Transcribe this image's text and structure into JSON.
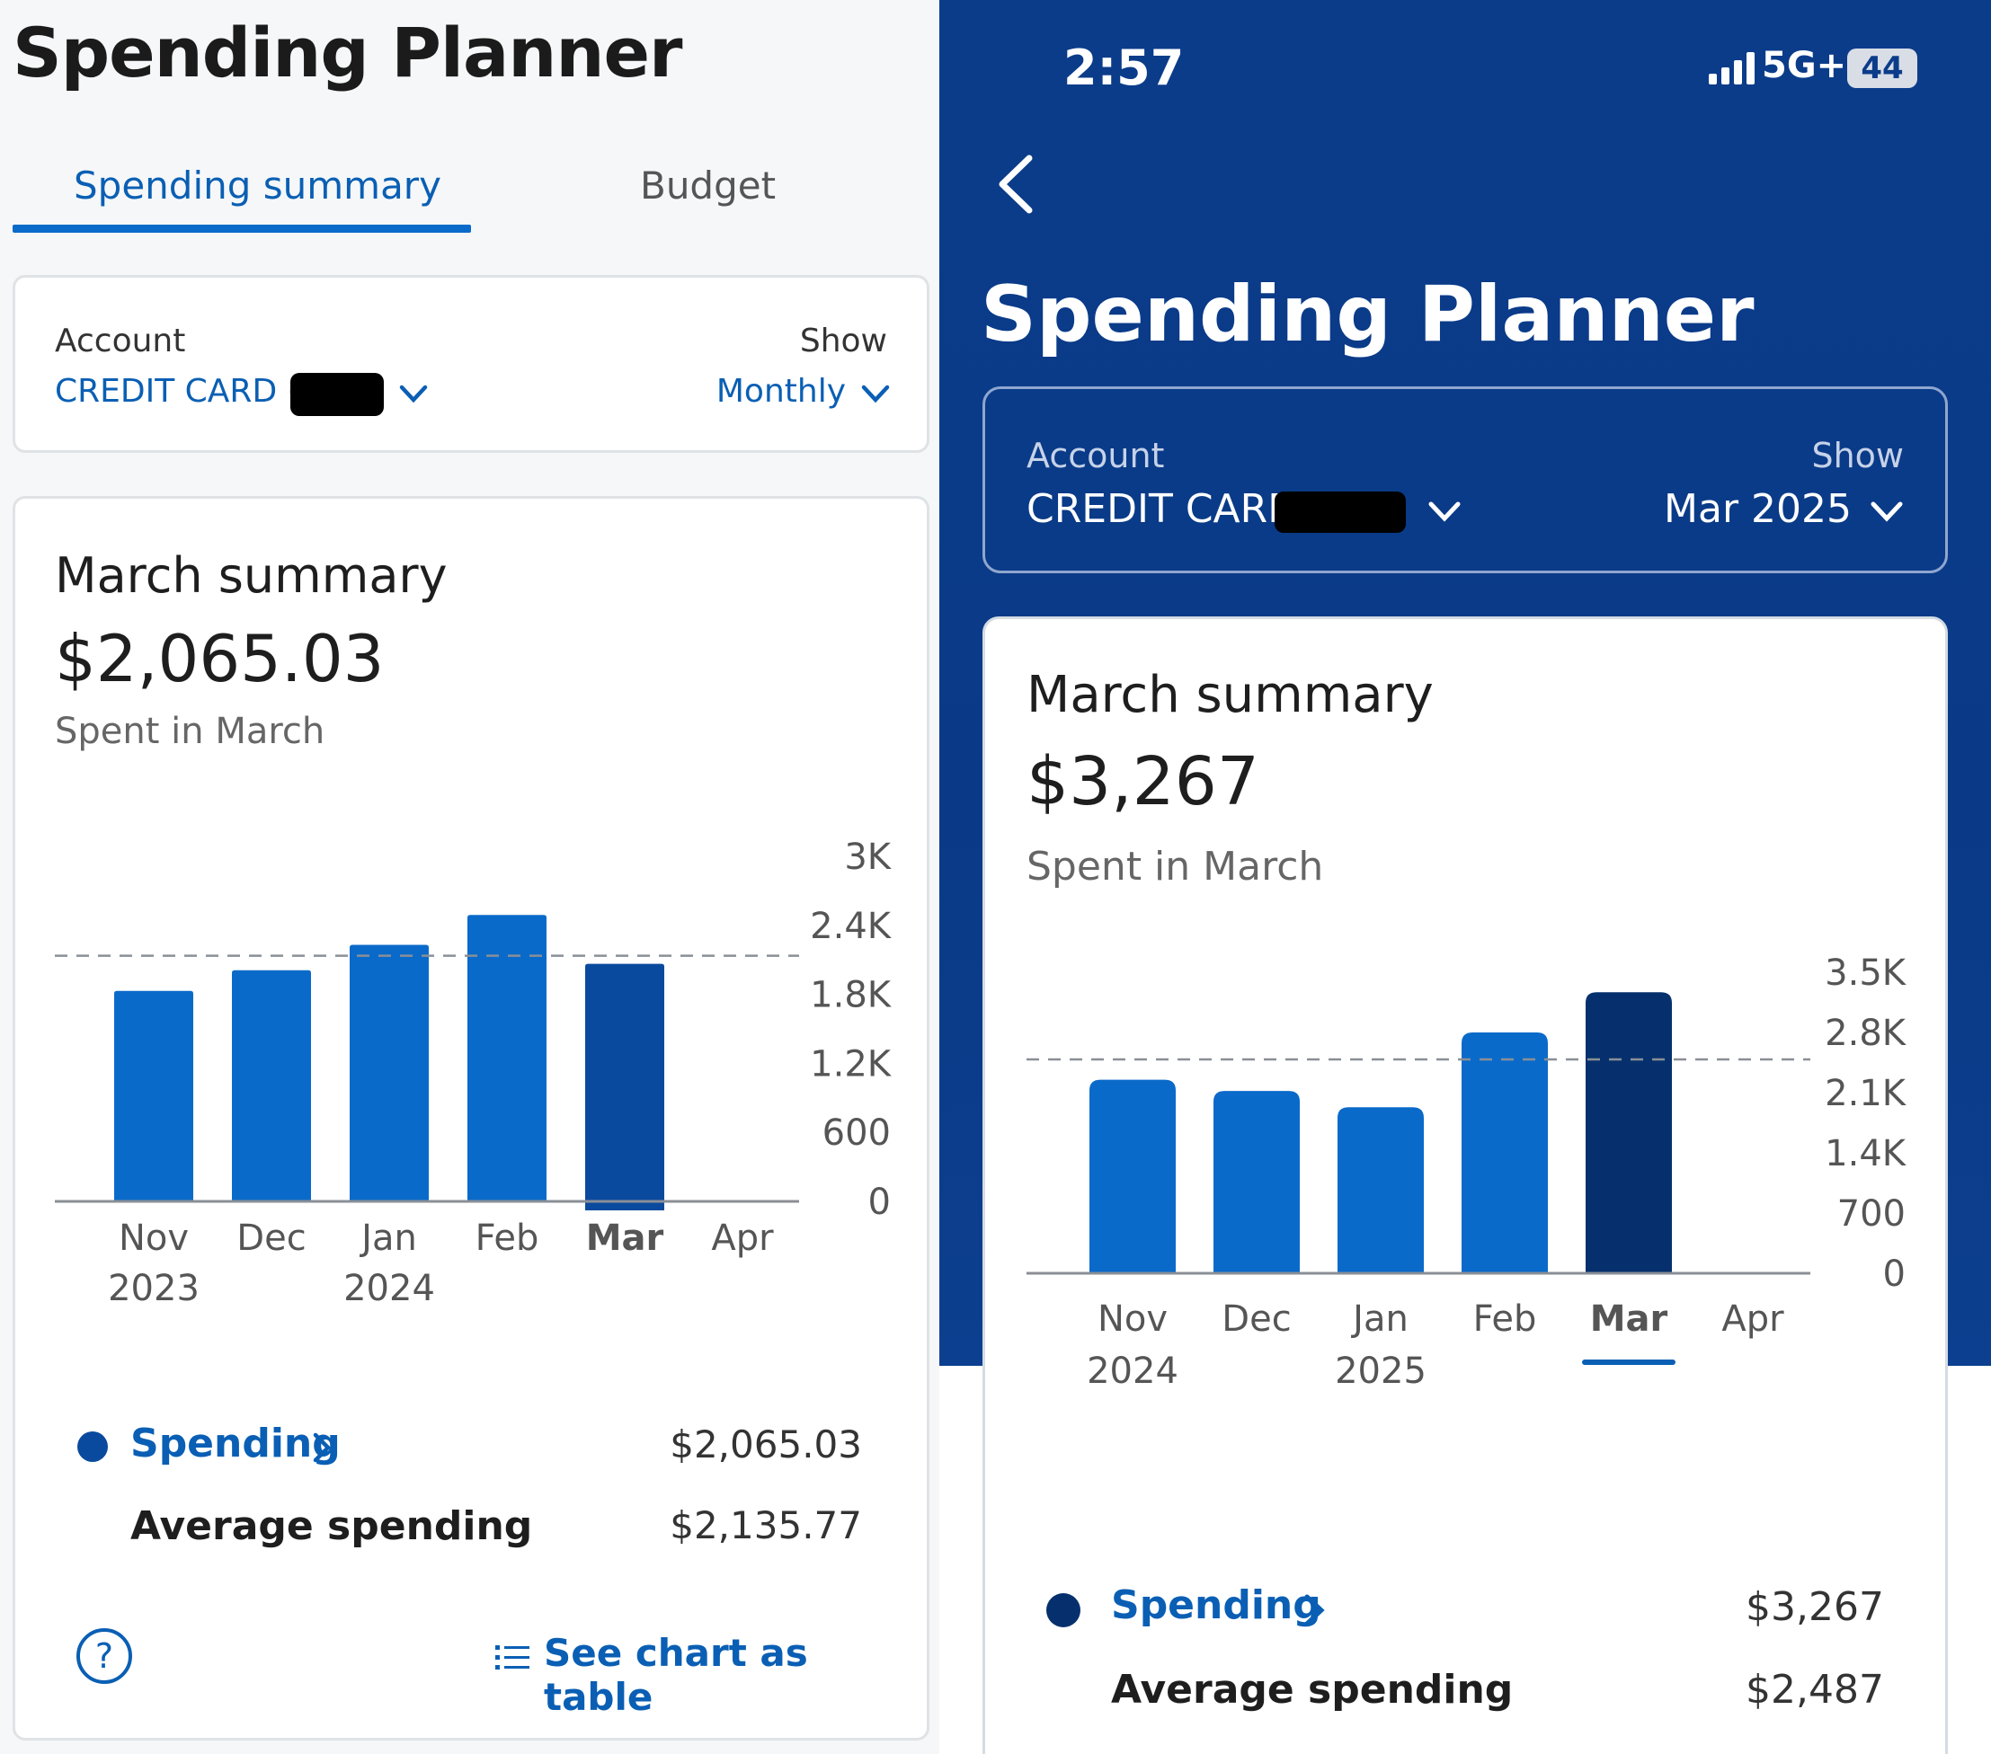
{
  "left": {
    "title": "Spending Planner",
    "tabs": [
      {
        "label": "Spending summary",
        "active": true
      },
      {
        "label": "Budget",
        "active": false
      }
    ],
    "filters": {
      "account_label": "Account",
      "account_value": "CREDIT CARD (..",
      "show_label": "Show",
      "show_value": "Monthly"
    },
    "summary": {
      "title": "March summary",
      "amount": "$2,065.03",
      "subtitle": "Spent in March"
    },
    "legend": {
      "spending_label": "Spending",
      "spending_value": "$2,065.03",
      "average_label": "Average spending",
      "average_value": "$2,135.77"
    },
    "footer": {
      "help_icon": "question-circle-icon",
      "table_link": "See chart as table"
    }
  },
  "right": {
    "status": {
      "time": "2:57",
      "network": "5G+",
      "battery": "44"
    },
    "title": "Spending Planner",
    "filters": {
      "account_label": "Account",
      "account_value": "CREDIT CARD (",
      "show_label": "Show",
      "show_value": "Mar 2025"
    },
    "summary": {
      "title": "March summary",
      "amount": "$3,267",
      "subtitle": "Spent in March"
    },
    "legend": {
      "spending_label": "Spending",
      "spending_value": "$3,267",
      "average_label": "Average spending",
      "average_value": "$2,487"
    }
  },
  "colors": {
    "bar": "#0a6ac9",
    "bar_selected_left": "#0a4a9e",
    "bar_selected_right": "#06306d",
    "link": "#0a5fb4",
    "hero": "#0b3c8a"
  },
  "chart_data": [
    {
      "type": "bar",
      "title": "March summary",
      "categories": [
        "Nov 2023",
        "Dec",
        "Jan 2024",
        "Feb",
        "Mar",
        "Apr"
      ],
      "x_labels": [
        [
          "Nov",
          "2023"
        ],
        [
          "Dec"
        ],
        [
          "Jan",
          "2024"
        ],
        [
          "Feb"
        ],
        [
          "Mar"
        ],
        [
          "Apr"
        ]
      ],
      "series": [
        {
          "name": "Spending",
          "values": [
            1830,
            2010,
            2230,
            2490,
            2065.03,
            null
          ]
        }
      ],
      "average": 2135.77,
      "selected": "Mar",
      "y_ticks": [
        "3K",
        "2.4K",
        "1.8K",
        "1.2K",
        "600",
        "0"
      ],
      "y_tick_values": [
        3000,
        2400,
        1800,
        1200,
        600,
        0
      ],
      "ylim": [
        0,
        3000
      ],
      "grid": false,
      "legend": "bottom"
    },
    {
      "type": "bar",
      "title": "March summary",
      "categories": [
        "Nov 2024",
        "Dec",
        "Jan 2025",
        "Feb",
        "Mar",
        "Apr"
      ],
      "x_labels": [
        [
          "Nov",
          "2024"
        ],
        [
          "Dec"
        ],
        [
          "Jan",
          "2025"
        ],
        [
          "Feb"
        ],
        [
          "Mar"
        ],
        [
          "Apr"
        ]
      ],
      "series": [
        {
          "name": "Spending",
          "values": [
            2250,
            2120,
            1930,
            2800,
            3267,
            null
          ]
        }
      ],
      "average": 2487,
      "selected": "Mar",
      "y_ticks": [
        "3.5K",
        "2.8K",
        "2.1K",
        "1.4K",
        "700",
        "0"
      ],
      "y_tick_values": [
        3500,
        2800,
        2100,
        1400,
        700,
        0
      ],
      "ylim": [
        0,
        3500
      ],
      "grid": false,
      "legend": "bottom"
    }
  ]
}
